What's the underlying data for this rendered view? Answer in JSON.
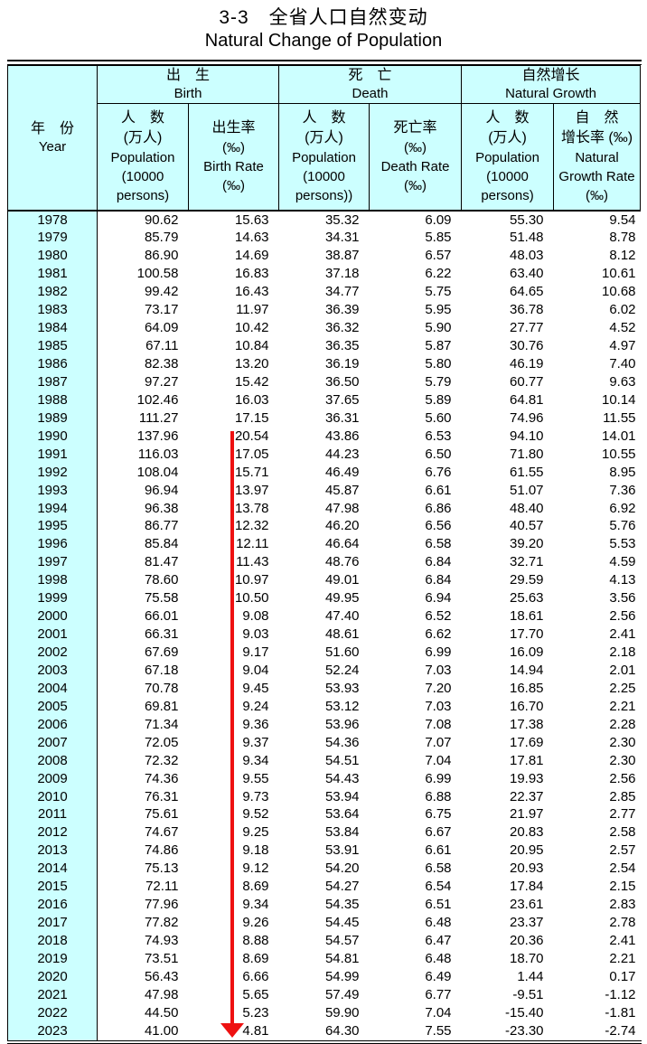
{
  "page": {
    "title_zh": "3-3　全省人口自然变动",
    "title_en": "Natural Change of Population"
  },
  "colors": {
    "header_bg": "#ccffff",
    "border": "#000000",
    "arrow_red": "#ee1111"
  },
  "table": {
    "year_header": {
      "zh": "年　份",
      "en": "Year"
    },
    "groups": [
      {
        "zh": "出　生",
        "en": "Birth"
      },
      {
        "zh": "死　亡",
        "en": "Death"
      },
      {
        "zh": "自然增长",
        "en": "Natural Growth"
      }
    ],
    "sub_headers": [
      {
        "lines": [
          "人　数",
          "(万人)",
          "Population",
          "(10000",
          "persons)"
        ]
      },
      {
        "lines": [
          "出生率",
          "(‰)",
          "Birth Rate",
          "(‰)"
        ]
      },
      {
        "lines": [
          "人　数",
          "(万人)",
          "Population",
          "(10000",
          "persons))"
        ]
      },
      {
        "lines": [
          "死亡率",
          "(‰)",
          "Death Rate",
          "(‰)"
        ]
      },
      {
        "lines": [
          "人　数",
          "(万人)",
          "Population",
          "(10000",
          "persons)"
        ]
      },
      {
        "lines": [
          "自　然",
          "增长率 (‰)",
          "Natural",
          "Growth Rate",
          "(‰)"
        ]
      }
    ],
    "rows": [
      {
        "year": "1978",
        "values": [
          "90.62",
          "15.63",
          "35.32",
          "6.09",
          "55.30",
          "9.54"
        ]
      },
      {
        "year": "1979",
        "values": [
          "85.79",
          "14.63",
          "34.31",
          "5.85",
          "51.48",
          "8.78"
        ]
      },
      {
        "year": "1980",
        "values": [
          "86.90",
          "14.69",
          "38.87",
          "6.57",
          "48.03",
          "8.12"
        ]
      },
      {
        "year": "1981",
        "values": [
          "100.58",
          "16.83",
          "37.18",
          "6.22",
          "63.40",
          "10.61"
        ]
      },
      {
        "year": "1982",
        "values": [
          "99.42",
          "16.43",
          "34.77",
          "5.75",
          "64.65",
          "10.68"
        ]
      },
      {
        "year": "1983",
        "values": [
          "73.17",
          "11.97",
          "36.39",
          "5.95",
          "36.78",
          "6.02"
        ]
      },
      {
        "year": "1984",
        "values": [
          "64.09",
          "10.42",
          "36.32",
          "5.90",
          "27.77",
          "4.52"
        ]
      },
      {
        "year": "1985",
        "values": [
          "67.11",
          "10.84",
          "36.35",
          "5.87",
          "30.76",
          "4.97"
        ]
      },
      {
        "year": "1986",
        "values": [
          "82.38",
          "13.20",
          "36.19",
          "5.80",
          "46.19",
          "7.40"
        ]
      },
      {
        "year": "1987",
        "values": [
          "97.27",
          "15.42",
          "36.50",
          "5.79",
          "60.77",
          "9.63"
        ]
      },
      {
        "year": "1988",
        "values": [
          "102.46",
          "16.03",
          "37.65",
          "5.89",
          "64.81",
          "10.14"
        ]
      },
      {
        "year": "1989",
        "values": [
          "111.27",
          "17.15",
          "36.31",
          "5.60",
          "74.96",
          "11.55"
        ]
      },
      {
        "year": "1990",
        "values": [
          "137.96",
          "20.54",
          "43.86",
          "6.53",
          "94.10",
          "14.01"
        ]
      },
      {
        "year": "1991",
        "values": [
          "116.03",
          "17.05",
          "44.23",
          "6.50",
          "71.80",
          "10.55"
        ]
      },
      {
        "year": "1992",
        "values": [
          "108.04",
          "15.71",
          "46.49",
          "6.76",
          "61.55",
          "8.95"
        ]
      },
      {
        "year": "1993",
        "values": [
          "96.94",
          "13.97",
          "45.87",
          "6.61",
          "51.07",
          "7.36"
        ]
      },
      {
        "year": "1994",
        "values": [
          "96.38",
          "13.78",
          "47.98",
          "6.86",
          "48.40",
          "6.92"
        ]
      },
      {
        "year": "1995",
        "values": [
          "86.77",
          "12.32",
          "46.20",
          "6.56",
          "40.57",
          "5.76"
        ]
      },
      {
        "year": "1996",
        "values": [
          "85.84",
          "12.11",
          "46.64",
          "6.58",
          "39.20",
          "5.53"
        ]
      },
      {
        "year": "1997",
        "values": [
          "81.47",
          "11.43",
          "48.76",
          "6.84",
          "32.71",
          "4.59"
        ]
      },
      {
        "year": "1998",
        "values": [
          "78.60",
          "10.97",
          "49.01",
          "6.84",
          "29.59",
          "4.13"
        ]
      },
      {
        "year": "1999",
        "values": [
          "75.58",
          "10.50",
          "49.95",
          "6.94",
          "25.63",
          "3.56"
        ]
      },
      {
        "year": "2000",
        "values": [
          "66.01",
          "9.08",
          "47.40",
          "6.52",
          "18.61",
          "2.56"
        ]
      },
      {
        "year": "2001",
        "values": [
          "66.31",
          "9.03",
          "48.61",
          "6.62",
          "17.70",
          "2.41"
        ]
      },
      {
        "year": "2002",
        "values": [
          "67.69",
          "9.17",
          "51.60",
          "6.99",
          "16.09",
          "2.18"
        ]
      },
      {
        "year": "2003",
        "values": [
          "67.18",
          "9.04",
          "52.24",
          "7.03",
          "14.94",
          "2.01"
        ]
      },
      {
        "year": "2004",
        "values": [
          "70.78",
          "9.45",
          "53.93",
          "7.20",
          "16.85",
          "2.25"
        ]
      },
      {
        "year": "2005",
        "values": [
          "69.81",
          "9.24",
          "53.12",
          "7.03",
          "16.70",
          "2.21"
        ]
      },
      {
        "year": "2006",
        "values": [
          "71.34",
          "9.36",
          "53.96",
          "7.08",
          "17.38",
          "2.28"
        ]
      },
      {
        "year": "2007",
        "values": [
          "72.05",
          "9.37",
          "54.36",
          "7.07",
          "17.69",
          "2.30"
        ]
      },
      {
        "year": "2008",
        "values": [
          "72.32",
          "9.34",
          "54.51",
          "7.04",
          "17.81",
          "2.30"
        ]
      },
      {
        "year": "2009",
        "values": [
          "74.36",
          "9.55",
          "54.43",
          "6.99",
          "19.93",
          "2.56"
        ]
      },
      {
        "year": "2010",
        "values": [
          "76.31",
          "9.73",
          "53.94",
          "6.88",
          "22.37",
          "2.85"
        ]
      },
      {
        "year": "2011",
        "values": [
          "75.61",
          "9.52",
          "53.64",
          "6.75",
          "21.97",
          "2.77"
        ]
      },
      {
        "year": "2012",
        "values": [
          "74.67",
          "9.25",
          "53.84",
          "6.67",
          "20.83",
          "2.58"
        ]
      },
      {
        "year": "2013",
        "values": [
          "74.86",
          "9.18",
          "53.91",
          "6.61",
          "20.95",
          "2.57"
        ]
      },
      {
        "year": "2014",
        "values": [
          "75.13",
          "9.12",
          "54.20",
          "6.58",
          "20.93",
          "2.54"
        ]
      },
      {
        "year": "2015",
        "values": [
          "72.11",
          "8.69",
          "54.27",
          "6.54",
          "17.84",
          "2.15"
        ]
      },
      {
        "year": "2016",
        "values": [
          "77.96",
          "9.34",
          "54.35",
          "6.51",
          "23.61",
          "2.83"
        ]
      },
      {
        "year": "2017",
        "values": [
          "77.82",
          "9.26",
          "54.45",
          "6.48",
          "23.37",
          "2.78"
        ]
      },
      {
        "year": "2018",
        "values": [
          "74.93",
          "8.88",
          "54.57",
          "6.47",
          "20.36",
          "2.41"
        ]
      },
      {
        "year": "2019",
        "values": [
          "73.51",
          "8.69",
          "54.81",
          "6.48",
          "18.70",
          "2.21"
        ]
      },
      {
        "year": "2020",
        "values": [
          "56.43",
          "6.66",
          "54.99",
          "6.49",
          "1.44",
          "0.17"
        ]
      },
      {
        "year": "2021",
        "values": [
          "47.98",
          "5.65",
          "57.49",
          "6.77",
          "-9.51",
          "-1.12"
        ]
      },
      {
        "year": "2022",
        "values": [
          "44.50",
          "5.23",
          "59.90",
          "7.04",
          "-15.40",
          "-1.81"
        ]
      },
      {
        "year": "2023",
        "values": [
          "41.00",
          "4.81",
          "64.30",
          "7.55",
          "-23.30",
          "-2.74"
        ]
      }
    ]
  },
  "annotation": {
    "trend_arrow": "red downward arrow over birth-rate column from 1990 to 2023"
  }
}
